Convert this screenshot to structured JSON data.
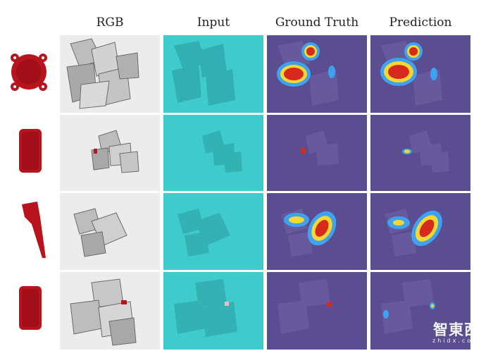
{
  "columns": [
    "RGB",
    "Input",
    "Ground Truth",
    "Prediction"
  ],
  "rows": [
    {
      "object": "round-flange"
    },
    {
      "object": "rectangular-plate"
    },
    {
      "object": "tapered-nozzle"
    },
    {
      "object": "rectangular-plate"
    }
  ],
  "colors": {
    "object": "#b8141d",
    "rgb_background": "#ececec",
    "input_background": "#3fcacb",
    "heatmap_background": "#5a4d90",
    "heatmap_hot": "#d62a1e",
    "heatmap_warm": "#f4d730",
    "heatmap_cool": "#3fa2f0"
  },
  "watermark": {
    "logo": "智東西",
    "sub": "zhidx.com"
  }
}
